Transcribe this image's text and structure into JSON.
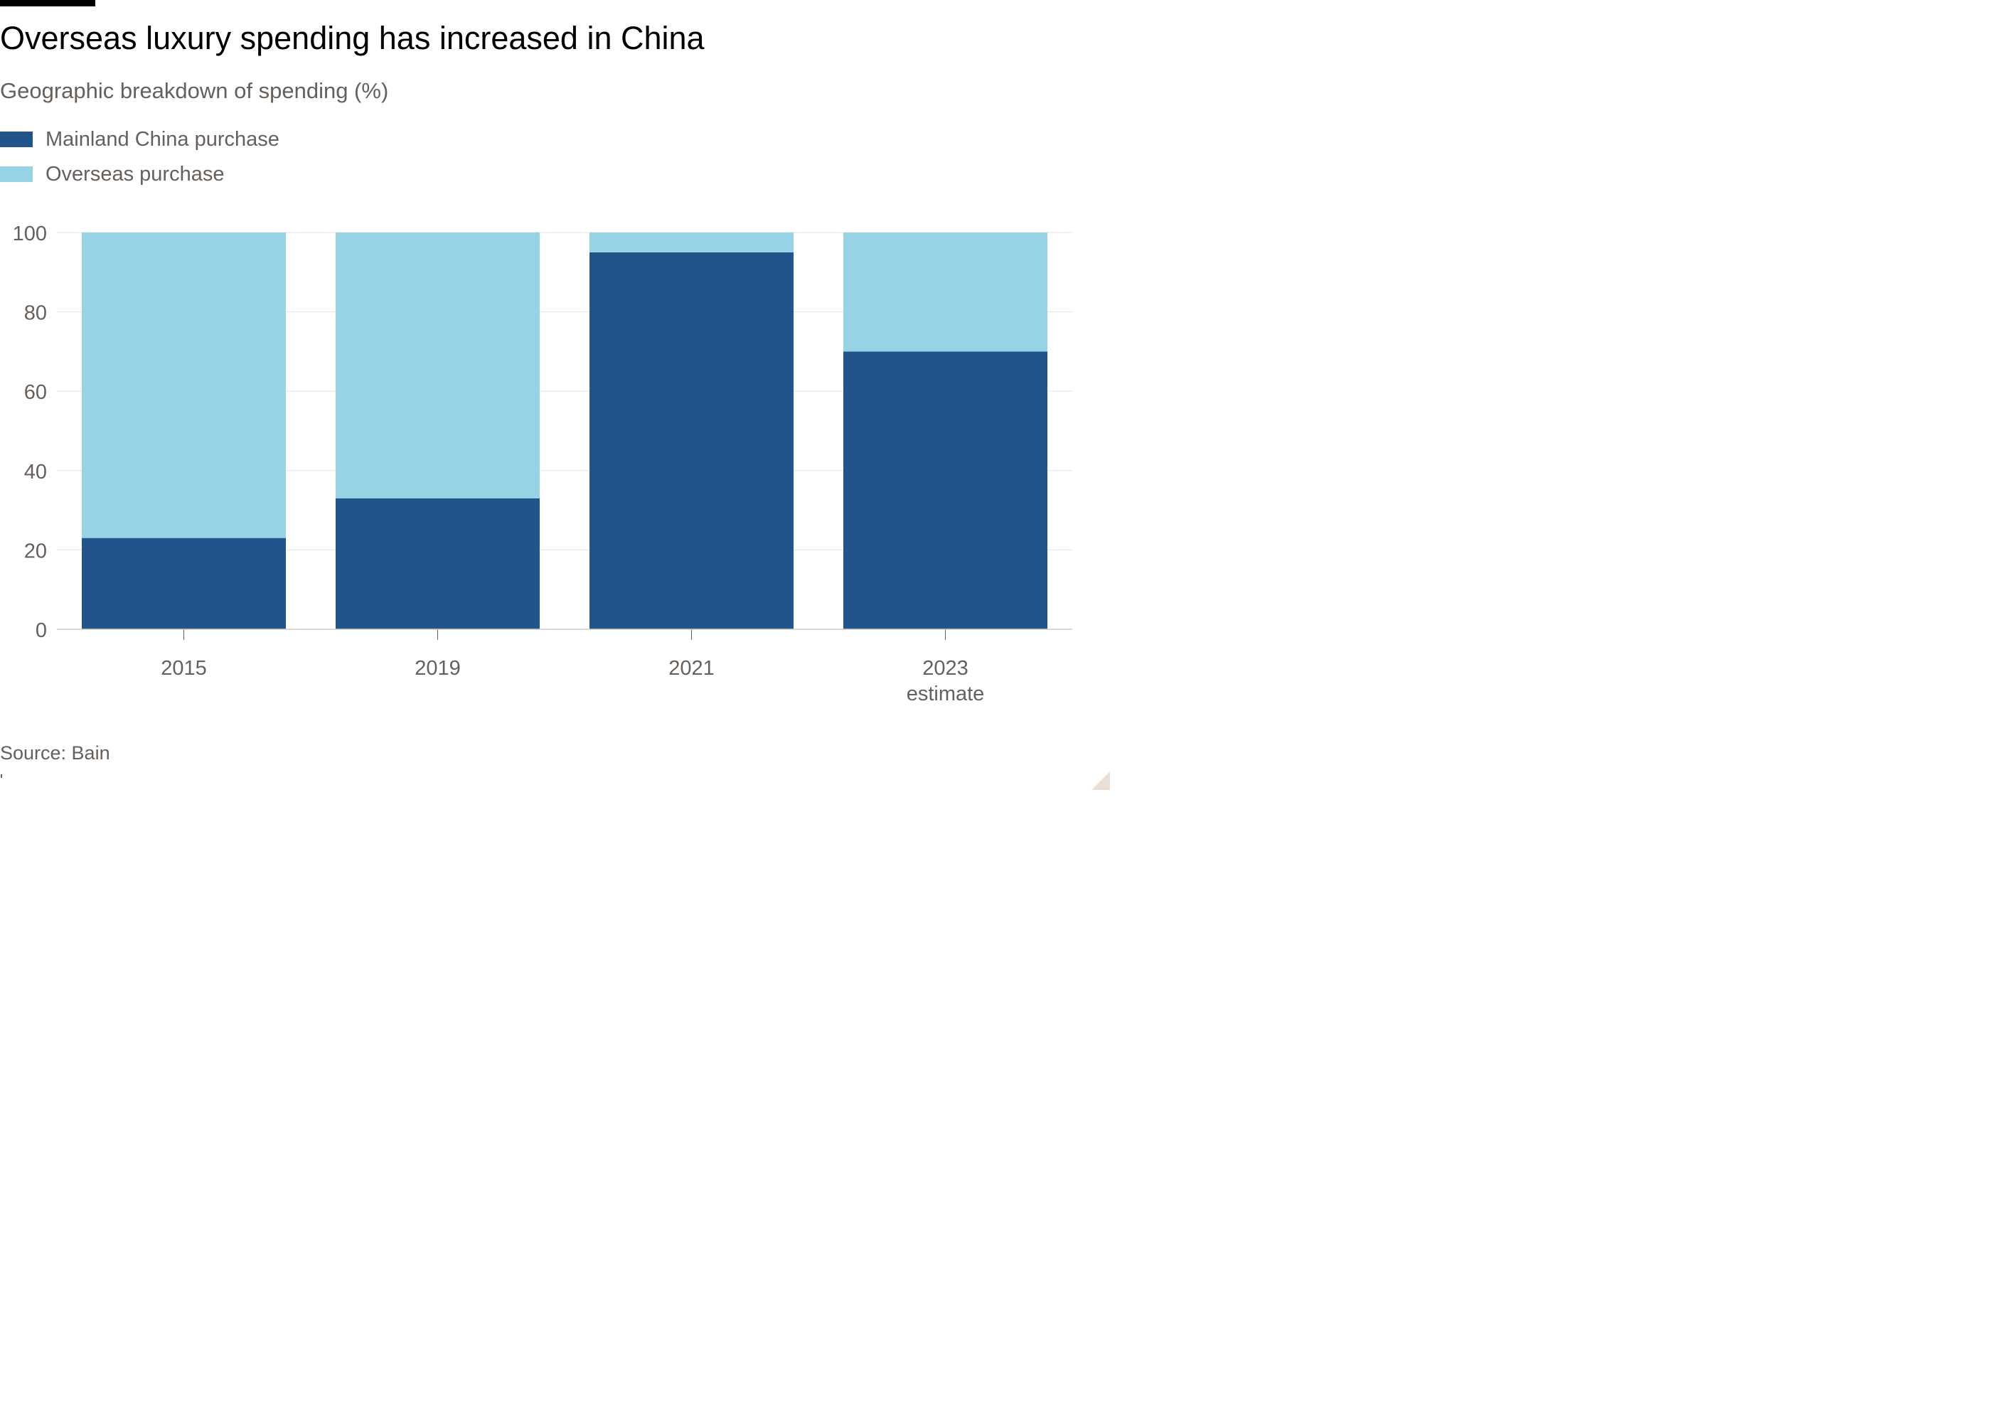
{
  "title": "Overseas luxury spending has increased in China",
  "subtitle": "Geographic breakdown of spending (%)",
  "source": "Source: Bain",
  "legend": [
    {
      "label": "Mainland China purchase",
      "color": "#20548b"
    },
    {
      "label": "Overseas purchase",
      "color": "#96d3e5"
    }
  ],
  "chart_data": {
    "type": "bar",
    "stacked": true,
    "categories": [
      "2015",
      "2019",
      "2021",
      "2023"
    ],
    "category_sublabels": [
      "",
      "",
      "",
      "estimate"
    ],
    "series": [
      {
        "name": "Mainland China purchase",
        "color": "#20548b",
        "values": [
          23,
          33,
          95,
          70
        ]
      },
      {
        "name": "Overseas purchase",
        "color": "#96d3e5",
        "values": [
          77,
          67,
          5,
          30
        ]
      }
    ],
    "ylim": [
      0,
      100
    ],
    "yticks": [
      0,
      20,
      40,
      60,
      80,
      100
    ],
    "grid": true,
    "legend_position": "top-left"
  }
}
